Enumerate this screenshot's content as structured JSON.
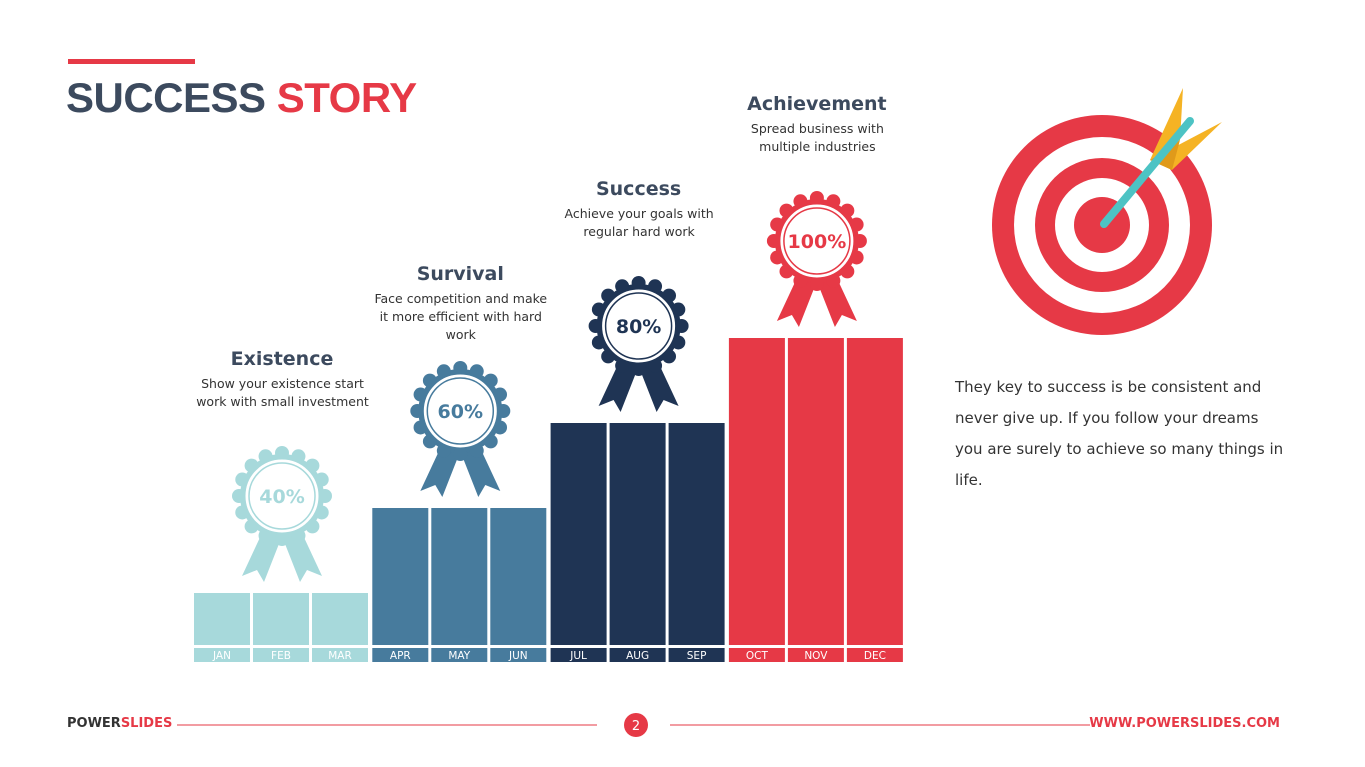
{
  "header": {
    "title_dark": "SUCCESS",
    "title_red": "STORY"
  },
  "chart_data": {
    "type": "bar",
    "categories": [
      "Existence",
      "Survival",
      "Success",
      "Achievement"
    ],
    "descriptions": [
      "Show your existence start work with small investment",
      "Face competition and make it more efficient with hard work",
      "Achieve your goals with regular hard work",
      "Spread business with multiple industries"
    ],
    "values": [
      40,
      60,
      80,
      100
    ],
    "value_labels": [
      "40%",
      "60%",
      "80%",
      "100%"
    ],
    "colors": [
      "#a7d9db",
      "#477b9d",
      "#1f3454",
      "#e63946"
    ],
    "months": [
      [
        "JAN",
        "FEB",
        "MAR"
      ],
      [
        "APR",
        "MAY",
        "JUN"
      ],
      [
        "JUL",
        "AUG",
        "SEP"
      ],
      [
        "OCT",
        "NOV",
        "DEC"
      ]
    ]
  },
  "note": "They key to success is be consistent and never give up.  If you follow your dreams you are surely to achieve so many things in life.",
  "footer": {
    "brand_dark": "POWER",
    "brand_red": "SLIDES",
    "page": "2",
    "url": "WWW.POWERSLIDES.COM"
  }
}
